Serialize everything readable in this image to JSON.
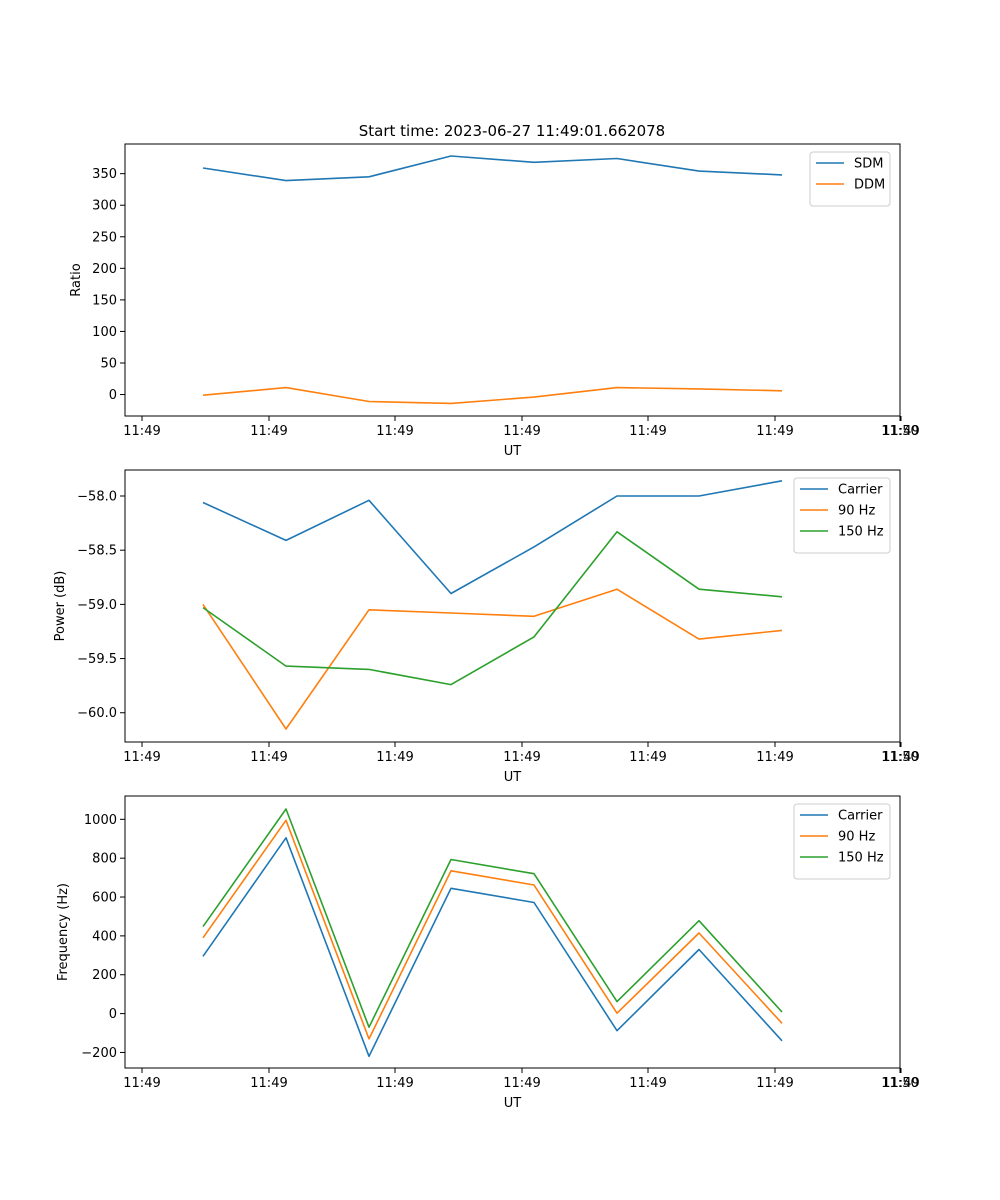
{
  "title": "Start time: 2023-06-27 11:49:01.662078",
  "chart_data": [
    {
      "type": "line",
      "title": "Start time: 2023-06-27 11:49:01.662078",
      "xlabel": "UT",
      "ylabel": "Ratio",
      "x_tick_labels": [
        "11:49",
        "11:49",
        "11:49",
        "11:49",
        "11:49",
        "11:49",
        "11:49"
      ],
      "x_tick_end_label": "11:50",
      "y_ticks": [
        0,
        50,
        100,
        150,
        200,
        250,
        300,
        350
      ],
      "y_tick_labels": [
        "0",
        "50",
        "100",
        "150",
        "200",
        "250",
        "300",
        "350"
      ],
      "ylim": [
        -34,
        397
      ],
      "legend_position": "upper right",
      "series": [
        {
          "name": "SDM",
          "color": "#1f77b4",
          "values": [
            359,
            339,
            345,
            378,
            368,
            374,
            354,
            348
          ]
        },
        {
          "name": "DDM",
          "color": "#ff7f0e",
          "values": [
            -1,
            11,
            -11,
            -14,
            -4,
            11,
            9,
            6
          ]
        }
      ]
    },
    {
      "type": "line",
      "xlabel": "UT",
      "ylabel": "Power (dB)",
      "x_tick_labels": [
        "11:49",
        "11:49",
        "11:49",
        "11:49",
        "11:49",
        "11:49",
        "11:49"
      ],
      "x_tick_end_label": "11:50",
      "y_ticks": [
        -60.0,
        -59.5,
        -59.0,
        -58.5,
        -58.0
      ],
      "y_tick_labels": [
        "−60.0",
        "−59.5",
        "−59.0",
        "−58.5",
        "−58.0"
      ],
      "ylim": [
        -60.27,
        -57.76
      ],
      "legend_position": "upper right",
      "series": [
        {
          "name": "Carrier",
          "color": "#1f77b4",
          "values": [
            -58.06,
            -58.41,
            -58.04,
            -58.9,
            -58.47,
            -58.0,
            -58.0,
            -57.86
          ]
        },
        {
          "name": "90 Hz",
          "color": "#ff7f0e",
          "values": [
            -59.0,
            -60.15,
            -59.05,
            -59.08,
            -59.11,
            -58.86,
            -59.32,
            -59.24
          ]
        },
        {
          "name": "150 Hz",
          "color": "#2ca02c",
          "values": [
            -59.03,
            -59.57,
            -59.6,
            -59.74,
            -59.3,
            -58.33,
            -58.86,
            -58.93
          ]
        }
      ]
    },
    {
      "type": "line",
      "xlabel": "UT",
      "ylabel": "Frequency (Hz)",
      "x_tick_labels": [
        "11:49",
        "11:49",
        "11:49",
        "11:49",
        "11:49",
        "11:49",
        "11:49"
      ],
      "x_tick_end_label": "11:50",
      "y_ticks": [
        -200,
        0,
        200,
        400,
        600,
        800,
        1000
      ],
      "y_tick_labels": [
        "−200",
        "0",
        "200",
        "400",
        "600",
        "800",
        "1000"
      ],
      "ylim": [
        -280,
        1120
      ],
      "legend_position": "upper right",
      "series": [
        {
          "name": "Carrier",
          "color": "#1f77b4",
          "values": [
            295,
            905,
            -220,
            645,
            572,
            -88,
            330,
            -140
          ]
        },
        {
          "name": "90 Hz",
          "color": "#ff7f0e",
          "values": [
            390,
            995,
            -130,
            735,
            662,
            2,
            415,
            -50
          ]
        },
        {
          "name": "150 Hz",
          "color": "#2ca02c",
          "values": [
            448,
            1053,
            -70,
            793,
            720,
            62,
            478,
            8
          ]
        }
      ]
    }
  ]
}
